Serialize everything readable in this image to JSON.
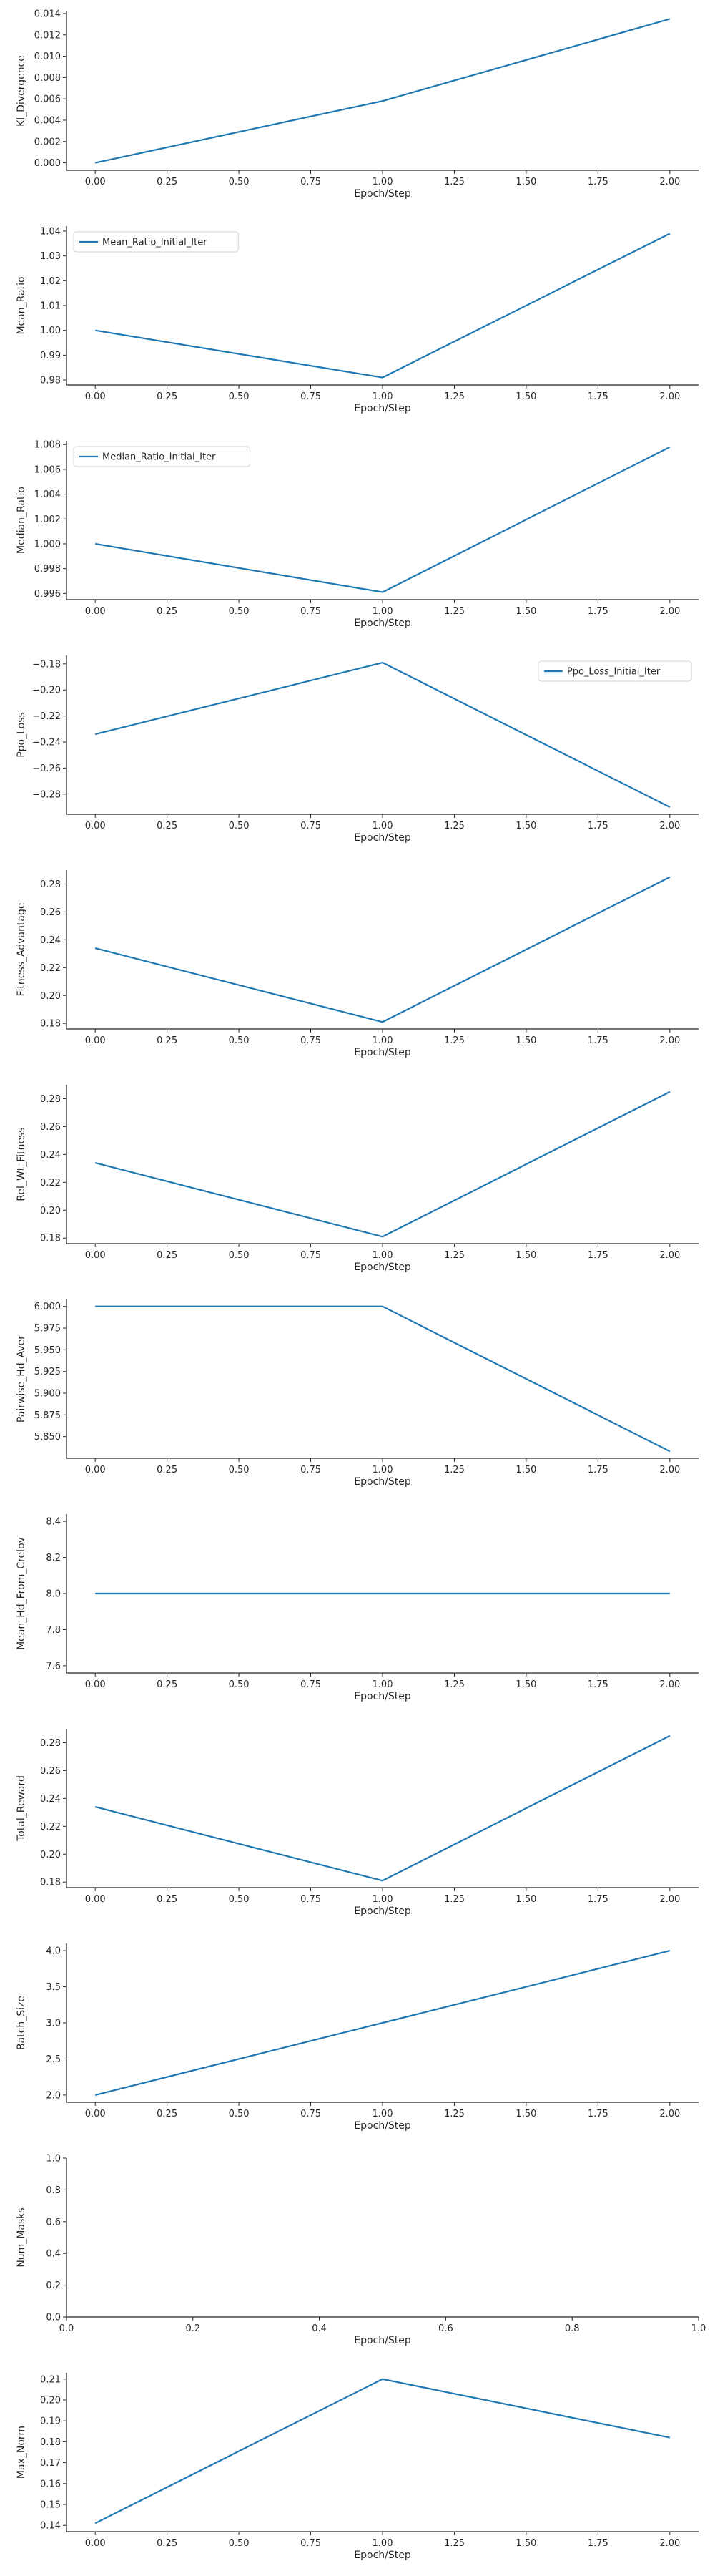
{
  "colors": {
    "line": "#1f77b4",
    "axis": "#262626",
    "background": "#ffffff"
  },
  "chart_data": [
    {
      "type": "line",
      "xlabel": "Epoch/Step",
      "ylabel": "Kl_Divergence",
      "x": [
        0,
        1,
        2
      ],
      "values": [
        0.0,
        0.0058,
        0.0135
      ],
      "xlim": [
        -0.1,
        2.1
      ],
      "ylim": [
        -0.0007,
        0.0142
      ],
      "xticks": [
        0,
        0.25,
        0.5,
        0.75,
        1,
        1.25,
        1.5,
        1.75,
        2
      ],
      "xtick_labels": [
        "0.00",
        "0.25",
        "0.50",
        "0.75",
        "1.00",
        "1.25",
        "1.50",
        "1.75",
        "2.00"
      ],
      "yticks": [
        0,
        0.002,
        0.004,
        0.006,
        0.008,
        0.01,
        0.012,
        0.014
      ],
      "ytick_labels": [
        "0.000",
        "0.002",
        "0.004",
        "0.006",
        "0.008",
        "0.010",
        "0.012",
        "0.014"
      ],
      "legend": null,
      "grid": false
    },
    {
      "type": "line",
      "xlabel": "Epoch/Step",
      "ylabel": "Mean_Ratio",
      "x": [
        0,
        1,
        2
      ],
      "values": [
        1.0,
        0.981,
        1.039
      ],
      "xlim": [
        -0.1,
        2.1
      ],
      "ylim": [
        0.978,
        1.042
      ],
      "xticks": [
        0,
        0.25,
        0.5,
        0.75,
        1,
        1.25,
        1.5,
        1.75,
        2
      ],
      "xtick_labels": [
        "0.00",
        "0.25",
        "0.50",
        "0.75",
        "1.00",
        "1.25",
        "1.50",
        "1.75",
        "2.00"
      ],
      "yticks": [
        0.98,
        0.99,
        1.0,
        1.01,
        1.02,
        1.03,
        1.04
      ],
      "ytick_labels": [
        "0.98",
        "0.99",
        "1.00",
        "1.01",
        "1.02",
        "1.03",
        "1.04"
      ],
      "legend": {
        "label": "Mean_Ratio_Initial_Iter",
        "position": "top-left"
      },
      "grid": false
    },
    {
      "type": "line",
      "xlabel": "Epoch/Step",
      "ylabel": "Median_Ratio",
      "x": [
        0,
        1,
        2
      ],
      "values": [
        1.0,
        0.9961,
        1.0078
      ],
      "xlim": [
        -0.1,
        2.1
      ],
      "ylim": [
        0.9955,
        1.0083
      ],
      "xticks": [
        0,
        0.25,
        0.5,
        0.75,
        1,
        1.25,
        1.5,
        1.75,
        2
      ],
      "xtick_labels": [
        "0.00",
        "0.25",
        "0.50",
        "0.75",
        "1.00",
        "1.25",
        "1.50",
        "1.75",
        "2.00"
      ],
      "yticks": [
        0.996,
        0.998,
        1.0,
        1.002,
        1.004,
        1.006,
        1.008
      ],
      "ytick_labels": [
        "0.996",
        "0.998",
        "1.000",
        "1.002",
        "1.004",
        "1.006",
        "1.008"
      ],
      "legend": {
        "label": "Median_Ratio_Initial_Iter",
        "position": "top-left"
      },
      "grid": false
    },
    {
      "type": "line",
      "xlabel": "Epoch/Step",
      "ylabel": "Ppo_Loss",
      "x": [
        0,
        1,
        2
      ],
      "values": [
        -0.234,
        -0.179,
        -0.29
      ],
      "xlim": [
        -0.1,
        2.1
      ],
      "ylim": [
        -0.2955,
        -0.1735
      ],
      "xticks": [
        0,
        0.25,
        0.5,
        0.75,
        1,
        1.25,
        1.5,
        1.75,
        2
      ],
      "xtick_labels": [
        "0.00",
        "0.25",
        "0.50",
        "0.75",
        "1.00",
        "1.25",
        "1.50",
        "1.75",
        "2.00"
      ],
      "yticks": [
        -0.28,
        -0.26,
        -0.24,
        -0.22,
        -0.2,
        -0.18
      ],
      "ytick_labels": [
        "−0.28",
        "−0.26",
        "−0.24",
        "−0.22",
        "−0.20",
        "−0.18"
      ],
      "legend": {
        "label": "Ppo_Loss_Initial_Iter",
        "position": "top-right"
      },
      "grid": false
    },
    {
      "type": "line",
      "xlabel": "Epoch/Step",
      "ylabel": "Fitness_Advantage",
      "x": [
        0,
        1,
        2
      ],
      "values": [
        0.234,
        0.181,
        0.285
      ],
      "xlim": [
        -0.1,
        2.1
      ],
      "ylim": [
        0.176,
        0.29
      ],
      "xticks": [
        0,
        0.25,
        0.5,
        0.75,
        1,
        1.25,
        1.5,
        1.75,
        2
      ],
      "xtick_labels": [
        "0.00",
        "0.25",
        "0.50",
        "0.75",
        "1.00",
        "1.25",
        "1.50",
        "1.75",
        "2.00"
      ],
      "yticks": [
        0.18,
        0.2,
        0.22,
        0.24,
        0.26,
        0.28
      ],
      "ytick_labels": [
        "0.18",
        "0.20",
        "0.22",
        "0.24",
        "0.26",
        "0.28"
      ],
      "legend": null,
      "grid": false
    },
    {
      "type": "line",
      "xlabel": "Epoch/Step",
      "ylabel": "Rel_Wt_Fitness",
      "x": [
        0,
        1,
        2
      ],
      "values": [
        0.234,
        0.181,
        0.285
      ],
      "xlim": [
        -0.1,
        2.1
      ],
      "ylim": [
        0.176,
        0.29
      ],
      "xticks": [
        0,
        0.25,
        0.5,
        0.75,
        1,
        1.25,
        1.5,
        1.75,
        2
      ],
      "xtick_labels": [
        "0.00",
        "0.25",
        "0.50",
        "0.75",
        "1.00",
        "1.25",
        "1.50",
        "1.75",
        "2.00"
      ],
      "yticks": [
        0.18,
        0.2,
        0.22,
        0.24,
        0.26,
        0.28
      ],
      "ytick_labels": [
        "0.18",
        "0.20",
        "0.22",
        "0.24",
        "0.26",
        "0.28"
      ],
      "legend": null,
      "grid": false
    },
    {
      "type": "line",
      "xlabel": "Epoch/Step",
      "ylabel": "Pairwise_Hd_Aver",
      "x": [
        0,
        1,
        2
      ],
      "values": [
        6.0,
        6.0,
        5.833
      ],
      "xlim": [
        -0.1,
        2.1
      ],
      "ylim": [
        5.825,
        6.008
      ],
      "xticks": [
        0,
        0.25,
        0.5,
        0.75,
        1,
        1.25,
        1.5,
        1.75,
        2
      ],
      "xtick_labels": [
        "0.00",
        "0.25",
        "0.50",
        "0.75",
        "1.00",
        "1.25",
        "1.50",
        "1.75",
        "2.00"
      ],
      "yticks": [
        5.85,
        5.875,
        5.9,
        5.925,
        5.95,
        5.975,
        6.0
      ],
      "ytick_labels": [
        "5.850",
        "5.875",
        "5.900",
        "5.925",
        "5.950",
        "5.975",
        "6.000"
      ],
      "legend": null,
      "grid": false
    },
    {
      "type": "line",
      "xlabel": "Epoch/Step",
      "ylabel": "Mean_Hd_From_Crelov",
      "x": [
        0,
        1,
        2
      ],
      "values": [
        8.0,
        8.0,
        8.0
      ],
      "xlim": [
        -0.1,
        2.1
      ],
      "ylim": [
        7.56,
        8.44
      ],
      "xticks": [
        0,
        0.25,
        0.5,
        0.75,
        1,
        1.25,
        1.5,
        1.75,
        2
      ],
      "xtick_labels": [
        "0.00",
        "0.25",
        "0.50",
        "0.75",
        "1.00",
        "1.25",
        "1.50",
        "1.75",
        "2.00"
      ],
      "yticks": [
        7.6,
        7.8,
        8.0,
        8.2,
        8.4
      ],
      "ytick_labels": [
        "7.6",
        "7.8",
        "8.0",
        "8.2",
        "8.4"
      ],
      "legend": null,
      "grid": false
    },
    {
      "type": "line",
      "xlabel": "Epoch/Step",
      "ylabel": "Total_Reward",
      "x": [
        0,
        1,
        2
      ],
      "values": [
        0.234,
        0.181,
        0.285
      ],
      "xlim": [
        -0.1,
        2.1
      ],
      "ylim": [
        0.176,
        0.29
      ],
      "xticks": [
        0,
        0.25,
        0.5,
        0.75,
        1,
        1.25,
        1.5,
        1.75,
        2
      ],
      "xtick_labels": [
        "0.00",
        "0.25",
        "0.50",
        "0.75",
        "1.00",
        "1.25",
        "1.50",
        "1.75",
        "2.00"
      ],
      "yticks": [
        0.18,
        0.2,
        0.22,
        0.24,
        0.26,
        0.28
      ],
      "ytick_labels": [
        "0.18",
        "0.20",
        "0.22",
        "0.24",
        "0.26",
        "0.28"
      ],
      "legend": null,
      "grid": false
    },
    {
      "type": "line",
      "xlabel": "Epoch/Step",
      "ylabel": "Batch_Size",
      "x": [
        0,
        1,
        2
      ],
      "values": [
        2.0,
        3.0,
        4.0
      ],
      "xlim": [
        -0.1,
        2.1
      ],
      "ylim": [
        1.9,
        4.1
      ],
      "xticks": [
        0,
        0.25,
        0.5,
        0.75,
        1,
        1.25,
        1.5,
        1.75,
        2
      ],
      "xtick_labels": [
        "0.00",
        "0.25",
        "0.50",
        "0.75",
        "1.00",
        "1.25",
        "1.50",
        "1.75",
        "2.00"
      ],
      "yticks": [
        2.0,
        2.5,
        3.0,
        3.5,
        4.0
      ],
      "ytick_labels": [
        "2.0",
        "2.5",
        "3.0",
        "3.5",
        "4.0"
      ],
      "legend": null,
      "grid": false
    },
    {
      "type": "line",
      "xlabel": "Epoch/Step",
      "ylabel": "Num_Masks",
      "x": [],
      "values": [],
      "xlim": [
        0,
        1
      ],
      "ylim": [
        0,
        1
      ],
      "xticks": [
        0,
        0.2,
        0.4,
        0.6,
        0.8,
        1.0
      ],
      "xtick_labels": [
        "0.0",
        "0.2",
        "0.4",
        "0.6",
        "0.8",
        "1.0"
      ],
      "yticks": [
        0,
        0.2,
        0.4,
        0.6,
        0.8,
        1.0
      ],
      "ytick_labels": [
        "0.0",
        "0.2",
        "0.4",
        "0.6",
        "0.8",
        "1.0"
      ],
      "legend": null,
      "grid": false
    },
    {
      "type": "line",
      "xlabel": "Epoch/Step",
      "ylabel": "Max_Norm",
      "x": [
        0,
        1,
        2
      ],
      "values": [
        0.141,
        0.21,
        0.182
      ],
      "xlim": [
        -0.1,
        2.1
      ],
      "ylim": [
        0.137,
        0.213
      ],
      "xticks": [
        0,
        0.25,
        0.5,
        0.75,
        1,
        1.25,
        1.5,
        1.75,
        2
      ],
      "xtick_labels": [
        "0.00",
        "0.25",
        "0.50",
        "0.75",
        "1.00",
        "1.25",
        "1.50",
        "1.75",
        "2.00"
      ],
      "yticks": [
        0.14,
        0.15,
        0.16,
        0.17,
        0.18,
        0.19,
        0.2,
        0.21
      ],
      "ytick_labels": [
        "0.14",
        "0.15",
        "0.16",
        "0.17",
        "0.18",
        "0.19",
        "0.20",
        "0.21"
      ],
      "legend": null,
      "grid": false
    }
  ]
}
